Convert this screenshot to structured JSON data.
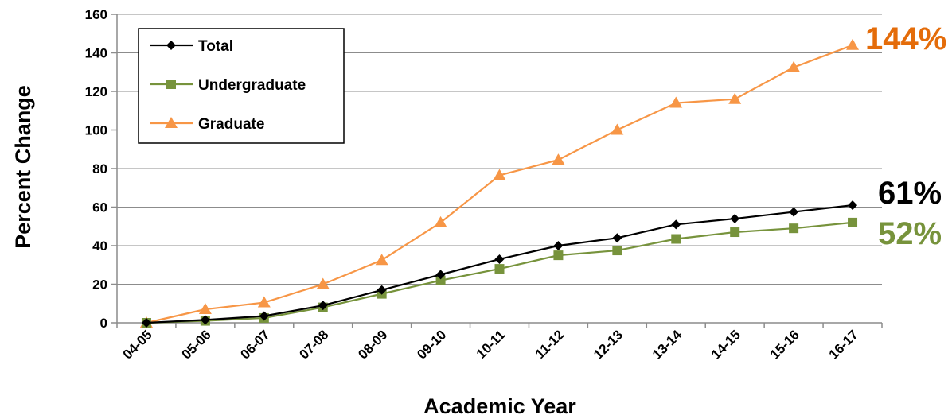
{
  "chart_data": {
    "type": "line",
    "title": "",
    "xlabel": "Academic Year",
    "ylabel": "Percent Change",
    "categories": [
      "04-05",
      "05-06",
      "06-07",
      "07-08",
      "08-09",
      "09-10",
      "10-11",
      "11-12",
      "12-13",
      "13-14",
      "14-15",
      "15-16",
      "16-17"
    ],
    "ylim": [
      0,
      160
    ],
    "yticks": [
      0,
      20,
      40,
      60,
      80,
      100,
      120,
      140,
      160
    ],
    "grid": true,
    "legend_position": "top-left",
    "series": [
      {
        "name": "Total",
        "color": "#000000",
        "marker": "diamond",
        "values": [
          0,
          1.5,
          3.5,
          9,
          17,
          25,
          33,
          40,
          44,
          51,
          54,
          57.5,
          61
        ],
        "end_label": "61%"
      },
      {
        "name": "Undergraduate",
        "color": "#77933C",
        "marker": "square",
        "values": [
          0,
          1,
          2.5,
          8,
          15,
          22,
          28,
          35,
          37.5,
          43.5,
          47,
          49,
          52
        ],
        "end_label": "52%"
      },
      {
        "name": "Graduate",
        "color": "#F79646",
        "marker": "triangle",
        "values": [
          0,
          7,
          10.5,
          20,
          32.5,
          52,
          76.5,
          84.5,
          100,
          114,
          116,
          132.5,
          144
        ],
        "end_label": "144%"
      }
    ],
    "end_label_colors": [
      "#000000",
      "#77933C",
      "#E46C0A"
    ]
  }
}
